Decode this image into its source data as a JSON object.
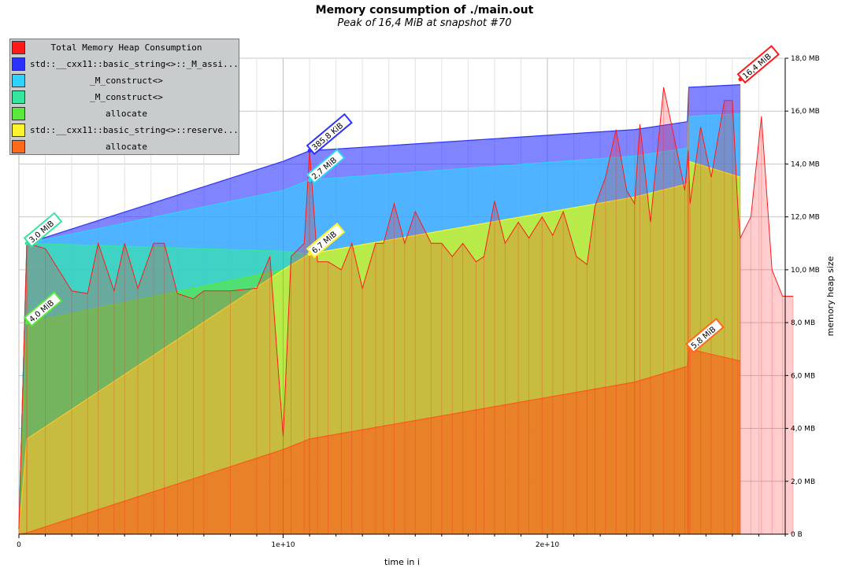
{
  "chart_data": {
    "type": "area",
    "title": "Memory consumption of ./main.out",
    "subtitle": "Peak of 16,4 MiB at snapshot #70",
    "xlabel": "time in i",
    "ylabel": "memory heap size",
    "xlim": [
      0,
      29000000000
    ],
    "ylim": [
      0,
      18
    ],
    "x_ticks": [
      {
        "value": 0,
        "label": "0"
      },
      {
        "value": 10000000000,
        "label": "1e+10"
      },
      {
        "value": 20000000000,
        "label": "2e+10"
      }
    ],
    "y_ticks": [
      {
        "value": 0,
        "label": "0 B"
      },
      {
        "value": 2,
        "label": "2,0 MB"
      },
      {
        "value": 4,
        "label": "4,0 MB"
      },
      {
        "value": 6,
        "label": "6,0 MB"
      },
      {
        "value": 8,
        "label": "8,0 MB"
      },
      {
        "value": 10,
        "label": "10,0 MB"
      },
      {
        "value": 12,
        "label": "12,0 MB"
      },
      {
        "value": 14,
        "label": "14,0 MB"
      },
      {
        "value": 16,
        "label": "16,0 MB"
      },
      {
        "value": 18,
        "label": "18,0 MB"
      }
    ],
    "grid": true,
    "legend_position": "top-left",
    "stacked_series": [
      {
        "name": "allocate",
        "color": "#ff6a1a",
        "x": [
          0,
          300000000,
          10000000000,
          11000000000,
          23300000000,
          25300000000,
          25350000000,
          27300000000
        ],
        "y": [
          0,
          0.05,
          3.2,
          3.6,
          5.75,
          6.35,
          7.0,
          6.55
        ]
      },
      {
        "name": "std::__cxx11::basic_string<>::reserve...",
        "color": "#fff22e",
        "x": [
          0,
          300000000,
          10000000000,
          11000000000,
          23300000000,
          25300000000,
          25350000000,
          27300000000
        ],
        "y": [
          0.05,
          3.6,
          10.0,
          10.6,
          12.75,
          13.25,
          14.1,
          13.5
        ]
      },
      {
        "name": "allocate",
        "color": "#5ae83c",
        "x": [
          0,
          300000000,
          10000000000,
          11000000000,
          23300000000,
          25300000000,
          25350000000,
          27300000000
        ],
        "y": [
          0.1,
          8.0,
          10.0,
          10.6,
          12.75,
          13.25,
          14.1,
          13.5
        ]
      },
      {
        "name": "_M_construct<>",
        "color": "#36e69e",
        "x": [
          0,
          300000000,
          10000000000,
          11000000000,
          23300000000,
          25300000000,
          25350000000,
          27300000000
        ],
        "y": [
          0.15,
          11.0,
          10.7,
          10.6,
          12.75,
          13.25,
          14.1,
          13.5
        ]
      },
      {
        "name": "_M_construct<>",
        "color": "#2ed2ff",
        "x": [
          0,
          300000000,
          10000000000,
          11000000000,
          23300000000,
          25300000000,
          25350000000,
          27300000000
        ],
        "y": [
          0.2,
          11.0,
          13.0,
          13.4,
          14.3,
          14.6,
          15.8,
          15.9
        ]
      },
      {
        "name": "std::__cxx11::basic_string<>::_M_assi...",
        "color": "#2b32ff",
        "x": [
          0,
          300000000,
          10000000000,
          11000000000,
          23300000000,
          25300000000,
          25350000000,
          27300000000
        ],
        "y": [
          0.2,
          11.0,
          14.1,
          14.5,
          15.3,
          15.6,
          16.9,
          17.0
        ]
      }
    ],
    "total_series": {
      "name": "Total Memory Heap Consumption",
      "color": "#ff1a1a",
      "x": [
        0,
        300000000,
        1000000000,
        2000000000,
        2600000000,
        3000000000,
        3600000000,
        4000000000,
        4500000000,
        5100000000,
        5500000000,
        6000000000,
        6600000000,
        7000000000,
        8000000000,
        9000000000,
        9500000000,
        10000000000,
        10300000000,
        10800000000,
        11000000000,
        11300000000,
        11700000000,
        12200000000,
        12600000000,
        13000000000,
        13500000000,
        13800000000,
        14200000000,
        14600000000,
        15000000000,
        15600000000,
        16000000000,
        16400000000,
        16800000000,
        17300000000,
        17600000000,
        18000000000,
        18400000000,
        18900000000,
        19300000000,
        19800000000,
        20200000000,
        20600000000,
        21100000000,
        21500000000,
        21800000000,
        22200000000,
        22600000000,
        23000000000,
        23300000000,
        23500000000,
        23900000000,
        24400000000,
        24800000000,
        25200000000,
        25330000000,
        25400000000,
        25800000000,
        26200000000,
        26700000000,
        27000000000,
        27200000000,
        27300000000,
        27700000000,
        28100000000,
        28500000000,
        28900000000,
        29300000000
      ],
      "y": [
        0.2,
        11.0,
        10.8,
        9.2,
        9.1,
        11.0,
        9.2,
        11.0,
        9.3,
        11.0,
        11.0,
        9.1,
        8.9,
        9.2,
        9.2,
        9.3,
        10.5,
        3.7,
        10.5,
        11.0,
        14.5,
        10.3,
        10.3,
        10.0,
        11.0,
        9.3,
        11.0,
        11.0,
        12.5,
        11.0,
        12.2,
        11.0,
        11.0,
        10.5,
        11.0,
        10.3,
        10.5,
        12.6,
        11.0,
        11.8,
        11.2,
        12.0,
        11.3,
        12.2,
        10.5,
        10.2,
        12.4,
        13.5,
        15.3,
        13.0,
        12.5,
        15.5,
        11.8,
        16.9,
        15.0,
        13.0,
        14.5,
        12.5,
        15.4,
        13.5,
        16.4,
        16.4,
        12.5,
        11.2,
        12.0,
        15.8,
        10.0,
        9.0,
        9.0
      ]
    },
    "peaks": [
      {
        "label": "3,0 MiB",
        "x": 300000000,
        "y": 11.0,
        "color": "#36e69e"
      },
      {
        "label": "4,0 MiB",
        "x": 300000000,
        "y": 8.0,
        "color": "#5ae83c"
      },
      {
        "label": "385,8 KiB",
        "x": 11000000000,
        "y": 14.5,
        "color": "#2b32ff"
      },
      {
        "label": "2,7 MiB",
        "x": 11000000000,
        "y": 13.4,
        "color": "#2ed2ff"
      },
      {
        "label": "6,7 MiB",
        "x": 11000000000,
        "y": 10.6,
        "color": "#fff22e"
      },
      {
        "label": "5,8 MiB",
        "x": 25350000000,
        "y": 7.0,
        "color": "#ff6a1a"
      },
      {
        "label": "16,4 MiB",
        "x": 27300000000,
        "y": 17.2,
        "color": "#ff1a1a"
      }
    ]
  },
  "legend": [
    {
      "label": "Total Memory Heap Consumption",
      "color": "#ff1a1a",
      "align": "center"
    },
    {
      "label": "std::__cxx11::basic_string<>::_M_assi...",
      "color": "#2b32ff",
      "align": "left"
    },
    {
      "label": "_M_construct<>",
      "color": "#2ed2ff",
      "align": "center"
    },
    {
      "label": "_M_construct<>",
      "color": "#36e69e",
      "align": "center"
    },
    {
      "label": "allocate",
      "color": "#5ae83c",
      "align": "center"
    },
    {
      "label": "std::__cxx11::basic_string<>::reserve...",
      "color": "#fff22e",
      "align": "left"
    },
    {
      "label": "allocate",
      "color": "#ff6a1a",
      "align": "center"
    }
  ]
}
